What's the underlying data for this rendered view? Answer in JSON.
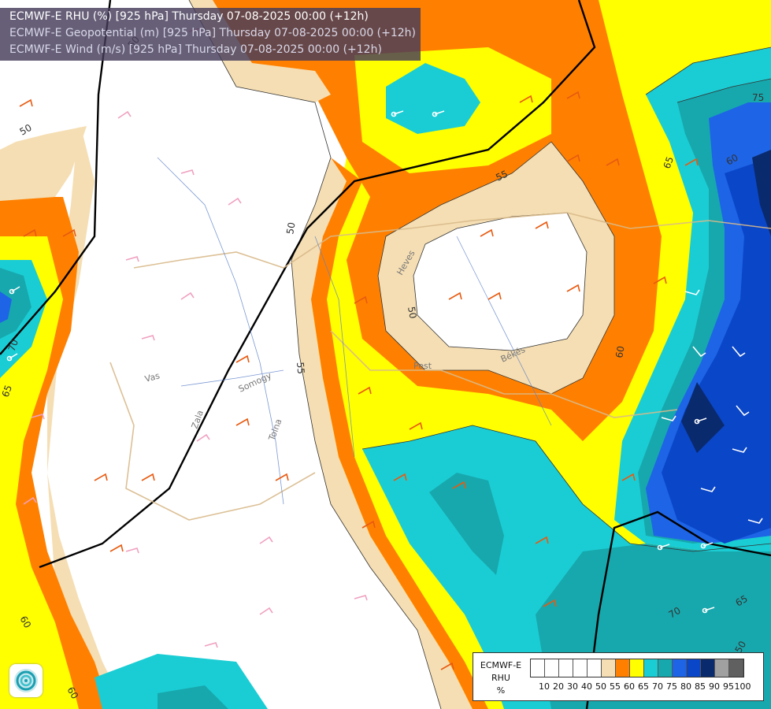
{
  "header": {
    "line1": "ECMWF-E RHU (%) [925 hPa] Thursday 07-08-2025 00:00 (+12h)",
    "line2": "ECMWF-E Geopotential (m) [925 hPa] Thursday 07-08-2025 00:00 (+12h)",
    "line3": "ECMWF-E Wind (m/s) [925 hPa] Thursday 07-08-2025 00:00 (+12h)"
  },
  "legend": {
    "title_model": "ECMWF-E",
    "title_var": "RHU",
    "title_unit": "%",
    "colors": [
      "#ffffff",
      "#ffffff",
      "#ffffff",
      "#ffffff",
      "#ffffff",
      "#f5deb3",
      "#ff8000",
      "#ffff00",
      "#1acdd4",
      "#17a8ad",
      "#1e64e6",
      "#0a46c8",
      "#0a2a6e",
      "#a0a0a0",
      "#606060"
    ],
    "ticks": [
      "10",
      "20",
      "30",
      "40",
      "50",
      "55",
      "60",
      "65",
      "70",
      "75",
      "80",
      "85",
      "90",
      "95",
      "100"
    ]
  },
  "contour_labels": [
    "50",
    "50",
    "50",
    "55",
    "50",
    "55",
    "60",
    "65",
    "70",
    "65",
    "75",
    "60",
    "70",
    "65",
    "60",
    "60",
    "50"
  ],
  "place_labels": [
    "Heves",
    "Vas",
    "Somogy",
    "Tolna",
    "Pest",
    "Békés",
    "Zala"
  ],
  "colors": {
    "white_zone": "#ffffff",
    "wheat": "#f5deb3",
    "orange": "#ff8000",
    "yellow": "#ffff00",
    "cyan": "#1acdd4",
    "teal": "#17a8ad",
    "blue": "#1e64e6",
    "darkblue": "#0a46c8",
    "navy": "#0a2a6e"
  },
  "logo": "ecmwf-logo"
}
